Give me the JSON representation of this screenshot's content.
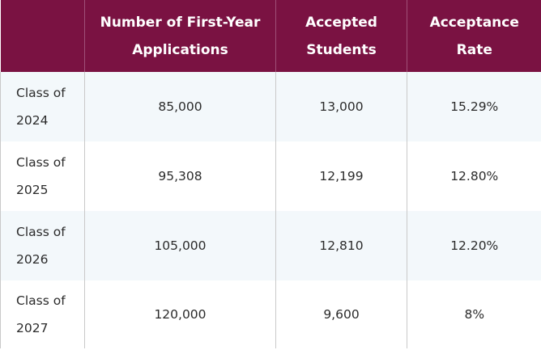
{
  "headers": [
    "",
    "Number of First-Year Applications",
    "Accepted Students",
    "Acceptance Rate"
  ],
  "rows": [
    {
      "class": "Class of 2024",
      "applications": "85,000",
      "accepted": "13,000",
      "rate": "15.29%"
    },
    {
      "class": "Class of 2025",
      "applications": "95,308",
      "accepted": "12,199",
      "rate": "12.80%"
    },
    {
      "class": "Class of 2026",
      "applications": "105,000",
      "accepted": "12,810",
      "rate": "12.20%"
    },
    {
      "class": "Class of 2027",
      "applications": "120,000",
      "accepted": "9,600",
      "rate": "8%"
    }
  ],
  "colors": {
    "header_background": "#7a1242",
    "header_text": "#ffffff",
    "alt_row_background": "#f3f8fb",
    "body_text": "#2b2b2b"
  }
}
